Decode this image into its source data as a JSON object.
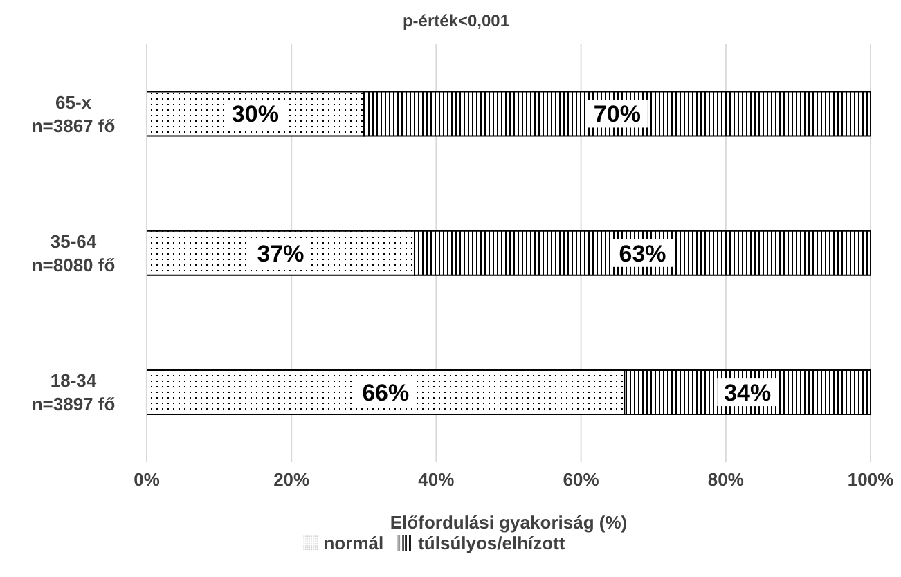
{
  "chart_data": {
    "type": "bar",
    "orientation": "horizontal",
    "stacked": true,
    "title": "p-érték<0,001",
    "xlabel": "Előfordulási gyakoriság (%)",
    "categories": [
      "65-x\nn=3867 fő",
      "35-64\nn=8080 fő",
      "18-34\nn=3897 fő"
    ],
    "series": [
      {
        "name": "normál",
        "color": "#000000",
        "values": [
          30,
          37,
          66
        ],
        "value_labels": [
          "30%",
          "37%",
          "66%"
        ]
      },
      {
        "name": "túlsúlyos/elhízott",
        "color": "#000000",
        "values": [
          70,
          63,
          34
        ],
        "value_labels": [
          "70%",
          "63%",
          "34%"
        ]
      }
    ],
    "xlim": [
      0,
      100
    ],
    "xticks": [
      {
        "value": 0,
        "label": "0%"
      },
      {
        "value": 20,
        "label": "20%"
      },
      {
        "value": 40,
        "label": "40%"
      },
      {
        "value": 60,
        "label": "60%"
      },
      {
        "value": 80,
        "label": "80%"
      },
      {
        "value": 100,
        "label": "100%"
      }
    ],
    "grid": "x",
    "legend": "bottom"
  }
}
